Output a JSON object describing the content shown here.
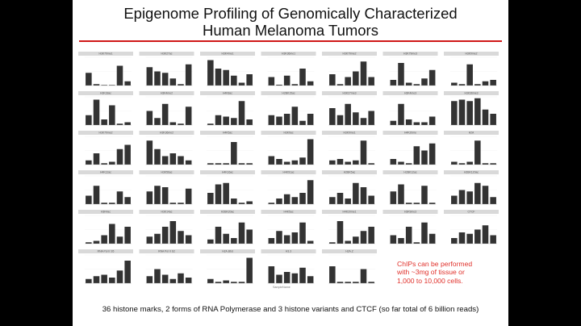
{
  "slide": {
    "title_line1": "Epigenome Profiling of Genomically Characterized",
    "title_line2": "Human Melanoma Tumors",
    "note_lines": [
      "ChIPs can be performed",
      "with ~3mg of tissue or",
      "1,000 to 10,000 cells."
    ],
    "caption": "36 histone marks, 2 forms of RNA Polymerase and 3 histone variants and CTCF (so far total of 6 billion reads)",
    "x_axis_label": "SampleName",
    "accent_color": "#d01818",
    "note_color": "#e0302a"
  },
  "chart_data": {
    "type": "bar",
    "panels": [
      {
        "name": "H3K79me1",
        "values": [
          0.45,
          0.05,
          0.02,
          0.02,
          0.7,
          0.15
        ]
      },
      {
        "name": "H3K27ac",
        "values": [
          0.65,
          0.5,
          0.45,
          0.25,
          0.05,
          0.75
        ]
      },
      {
        "name": "H3K4me1",
        "values": [
          0.9,
          0.6,
          0.55,
          0.35,
          0.1,
          0.4
        ]
      },
      {
        "name": "H3K36me1",
        "values": [
          0.3,
          0.03,
          0.35,
          0.05,
          0.6,
          0.15
        ]
      },
      {
        "name": "H3K79me2",
        "values": [
          0.4,
          0.05,
          0.3,
          0.5,
          0.85,
          0.3
        ]
      },
      {
        "name": "H3K79me3",
        "values": [
          0.2,
          0.8,
          0.1,
          0.05,
          0.25,
          0.55
        ]
      },
      {
        "name": "H3K9me2",
        "values": [
          0.1,
          0.05,
          0.75,
          0.05,
          0.15,
          0.2
        ]
      },
      {
        "name": "H3K18ac",
        "values": [
          0.35,
          0.9,
          0.2,
          0.7,
          0.05,
          0.1
        ]
      },
      {
        "name": "H3K4me2",
        "values": [
          0.5,
          0.25,
          0.75,
          0.1,
          0.05,
          0.65
        ]
      },
      {
        "name": "H4K8ac",
        "values": [
          0.05,
          0.35,
          0.3,
          0.25,
          0.85,
          0.2
        ]
      },
      {
        "name": "H2BK15ac",
        "values": [
          0.35,
          0.3,
          0.4,
          0.65,
          0.15,
          0.4
        ]
      },
      {
        "name": "H3K27me3",
        "values": [
          0.6,
          0.35,
          0.75,
          0.45,
          0.25,
          0.5
        ]
      },
      {
        "name": "H3K4me3",
        "values": [
          0.15,
          0.75,
          0.2,
          0.1,
          0.1,
          0.3
        ]
      },
      {
        "name": "H3K36me3",
        "values": [
          0.85,
          0.9,
          0.85,
          0.95,
          0.55,
          0.4
        ]
      },
      {
        "name": "H3K79me2",
        "values": [
          0.15,
          0.4,
          0.05,
          0.1,
          0.55,
          0.7
        ]
      },
      {
        "name": "H3K36me2",
        "values": [
          0.85,
          0.55,
          0.3,
          0.4,
          0.3,
          0.15
        ]
      },
      {
        "name": "H4K5ac",
        "values": [
          0.05,
          0.05,
          0.05,
          0.8,
          0.05,
          0.05
        ]
      },
      {
        "name": "H3K9ac",
        "values": [
          0.3,
          0.2,
          0.1,
          0.15,
          0.25,
          0.9
        ]
      },
      {
        "name": "H3K9me1",
        "values": [
          0.15,
          0.2,
          0.1,
          0.15,
          0.85,
          0.05
        ]
      },
      {
        "name": "H4K20me",
        "values": [
          0.2,
          0.1,
          0.05,
          0.65,
          0.5,
          0.75
        ]
      },
      {
        "name": "H2A",
        "values": [
          0.1,
          0.05,
          0.1,
          0.85,
          0.05,
          0.05
        ]
      },
      {
        "name": "H4K12ac",
        "values": [
          0.3,
          0.65,
          0.05,
          0.05,
          0.45,
          0.25
        ]
      },
      {
        "name": "H3K56ac",
        "values": [
          0.45,
          0.65,
          0.6,
          0.05,
          0.05,
          0.55
        ]
      },
      {
        "name": "H4K16ac",
        "values": [
          0.4,
          0.7,
          0.75,
          0.2,
          0.05,
          0.1
        ]
      },
      {
        "name": "H4K91ac",
        "values": [
          0.05,
          0.2,
          0.35,
          0.25,
          0.4,
          0.85
        ]
      },
      {
        "name": "H2BK5ac",
        "values": [
          0.25,
          0.4,
          0.2,
          0.75,
          0.6,
          0.3
        ]
      },
      {
        "name": "H2BK12ac",
        "values": [
          0.45,
          0.7,
          0.05,
          0.05,
          0.65,
          0.05
        ]
      },
      {
        "name": "H2BK120ac",
        "values": [
          0.3,
          0.5,
          0.45,
          0.75,
          0.65,
          0.25
        ]
      },
      {
        "name": "H3K4ac",
        "values": [
          0.05,
          0.1,
          0.3,
          0.7,
          0.25,
          0.6
        ]
      },
      {
        "name": "H3K14ac",
        "values": [
          0.25,
          0.35,
          0.6,
          0.8,
          0.45,
          0.3
        ]
      },
      {
        "name": "H2BK20ac",
        "values": [
          0.15,
          0.6,
          0.35,
          0.2,
          0.75,
          0.5
        ]
      },
      {
        "name": "H4K5ac",
        "values": [
          0.2,
          0.45,
          0.3,
          0.4,
          0.75,
          0.1
        ]
      },
      {
        "name": "H4K20me1",
        "values": [
          0.05,
          0.8,
          0.1,
          0.25,
          0.45,
          0.6
        ]
      },
      {
        "name": "H3K9me3",
        "values": [
          0.3,
          0.2,
          0.6,
          0.05,
          0.75,
          0.35
        ]
      },
      {
        "name": "CTCF",
        "values": [
          0.2,
          0.4,
          0.35,
          0.5,
          0.65,
          0.3
        ]
      },
      {
        "name": "RNA Pol II S5",
        "values": [
          0.15,
          0.25,
          0.3,
          0.2,
          0.45,
          0.8
        ]
      },
      {
        "name": "RNA Pol II S2",
        "values": [
          0.25,
          0.5,
          0.3,
          0.15,
          0.35,
          0.2
        ]
      },
      {
        "name": "H2A.Bbd",
        "values": [
          0.15,
          0.05,
          0.1,
          0.05,
          0.05,
          0.9
        ]
      },
      {
        "name": "H3.3",
        "values": [
          0.6,
          0.3,
          0.4,
          0.35,
          0.55,
          0.25
        ]
      },
      {
        "name": "H2A.Z",
        "values": [
          0.6,
          0.05,
          0.05,
          0.05,
          0.5,
          0.05
        ]
      }
    ]
  }
}
